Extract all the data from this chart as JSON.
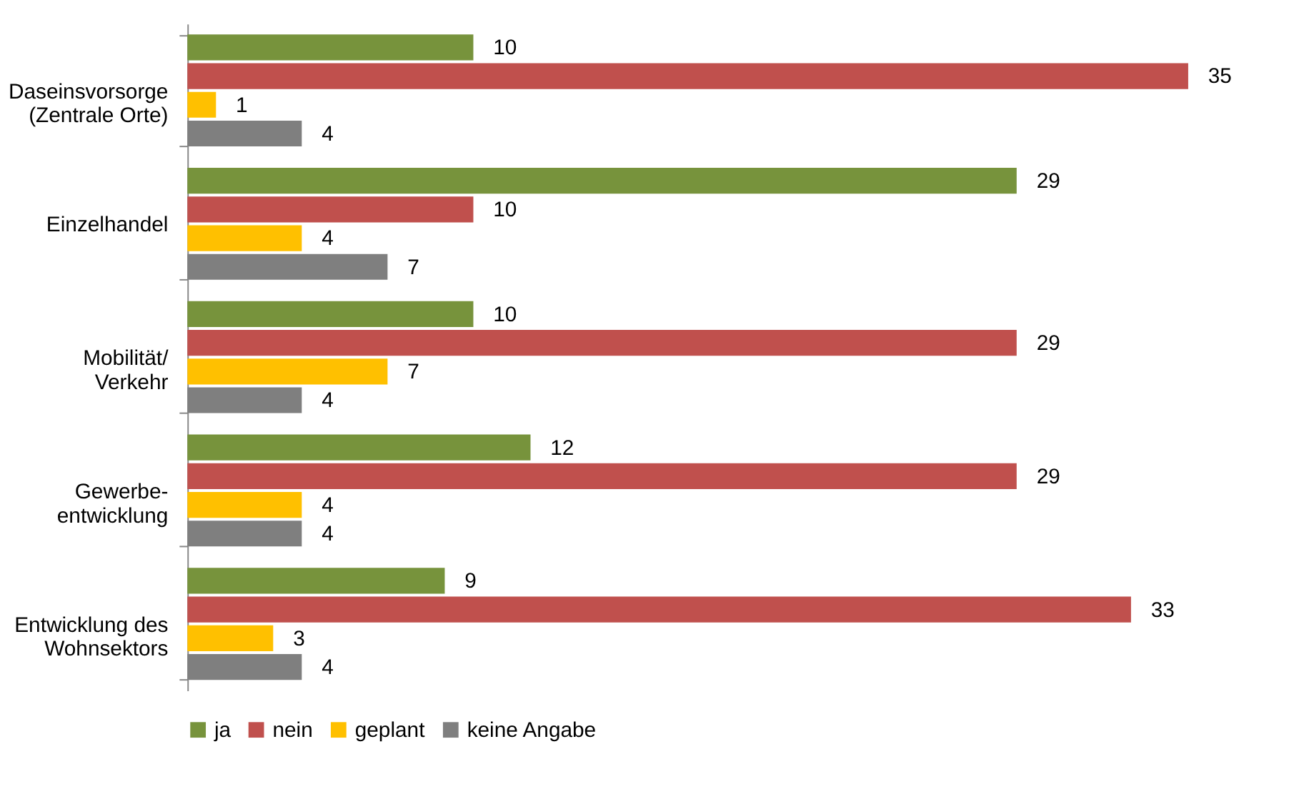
{
  "chart_data": {
    "type": "bar",
    "orientation": "horizontal",
    "data_labels": true,
    "legend": "bottom",
    "grid": false,
    "categories": [
      "Daseinsvorsorge\n(Zentrale Orte)",
      "Einzelhandel",
      "Mobilität/\nVerkehr",
      "Gewerbe-\nentwicklung",
      "Entwicklung des\nWohnsektors"
    ],
    "series": [
      {
        "name": "ja",
        "color": "#77933c",
        "values": [
          10,
          29,
          10,
          12,
          9
        ]
      },
      {
        "name": "nein",
        "color": "#c0504d",
        "values": [
          35,
          10,
          29,
          29,
          33
        ]
      },
      {
        "name": "geplant",
        "color": "#ffc000",
        "values": [
          1,
          4,
          7,
          4,
          3
        ]
      },
      {
        "name": "keine Angabe",
        "color": "#7f7f7f",
        "values": [
          4,
          7,
          4,
          4,
          4
        ]
      }
    ]
  }
}
